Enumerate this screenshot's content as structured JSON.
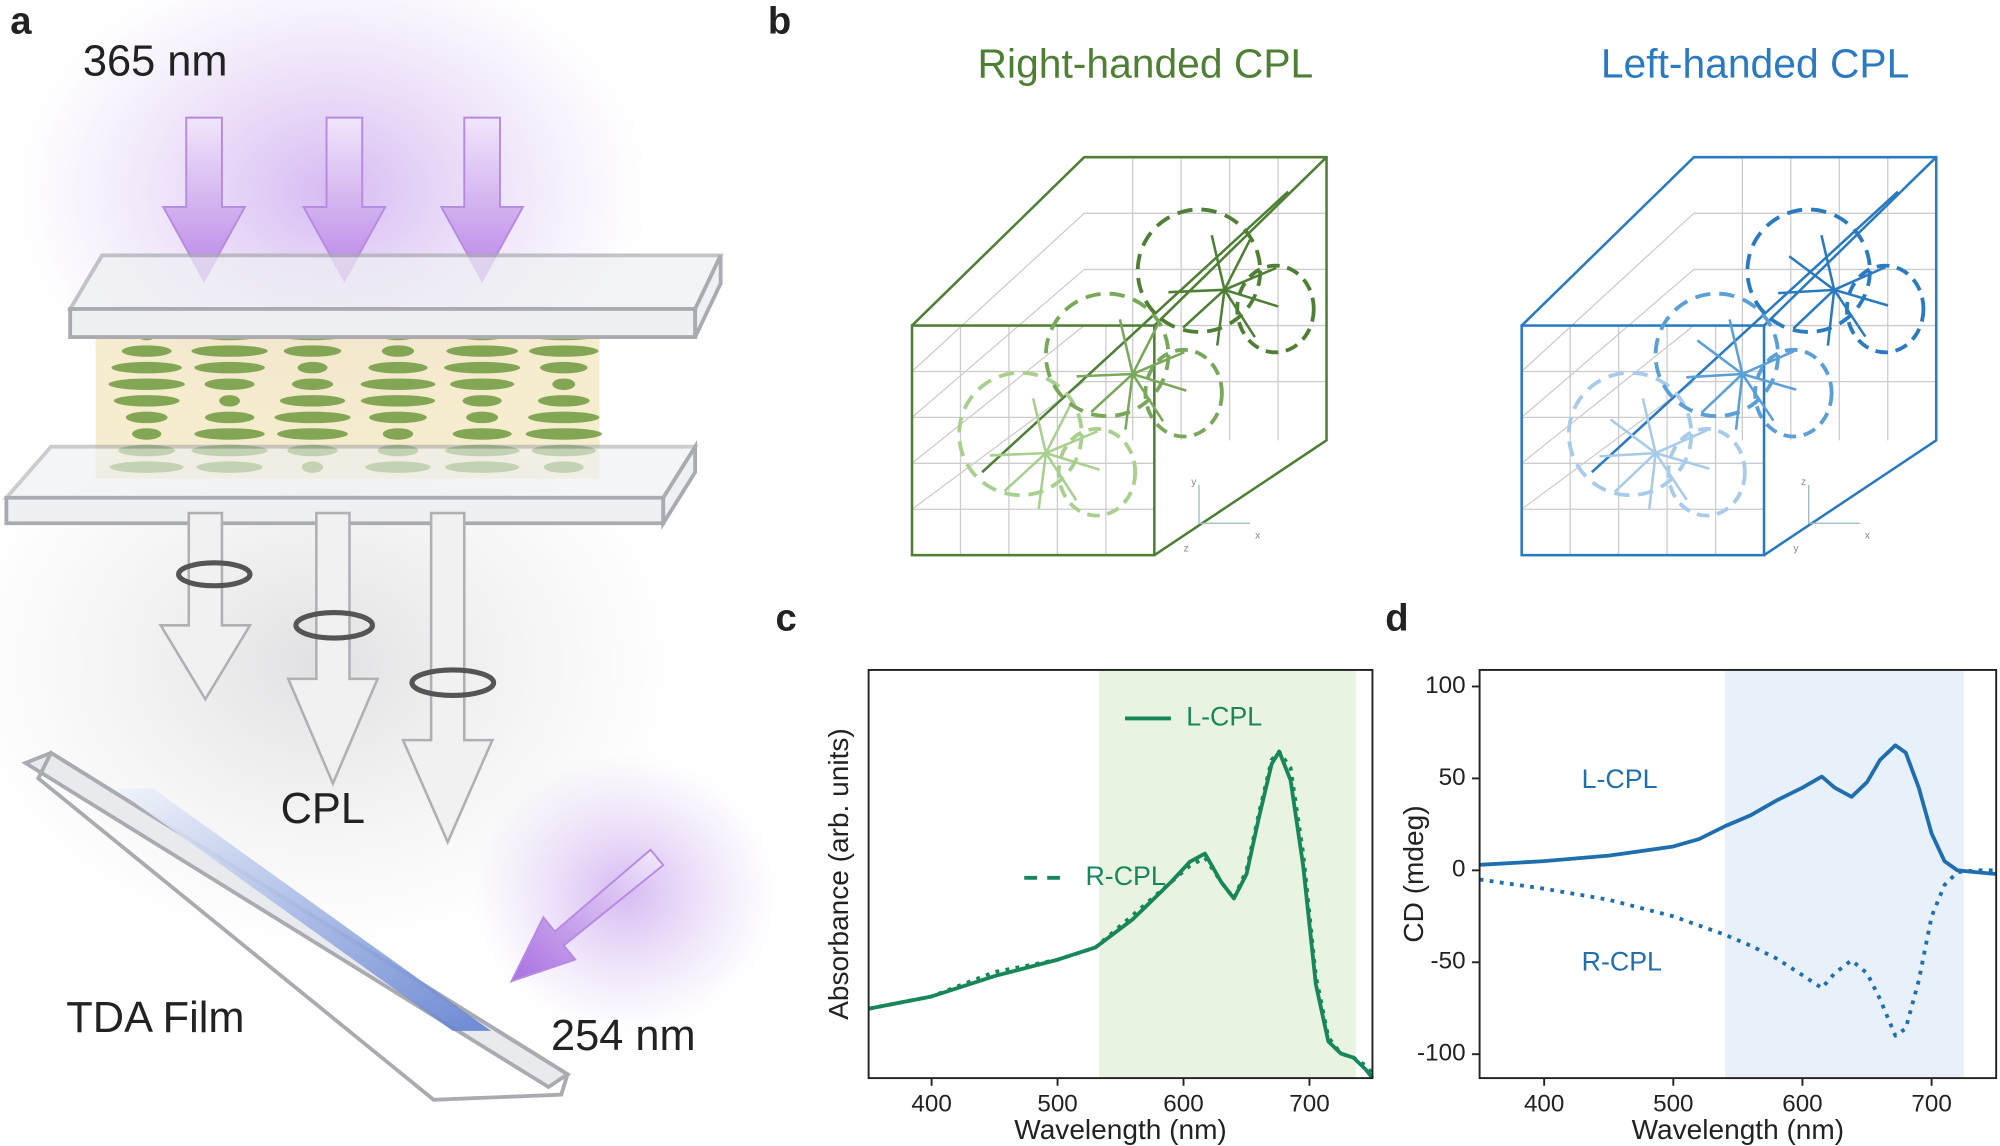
{
  "panel_labels": [
    "a",
    "b",
    "c",
    "d"
  ],
  "panel_a": {
    "top_wavelength": "365 nm",
    "beam_label": "CPL",
    "film_label": "TDA Film",
    "side_wavelength": "254 nm"
  },
  "panel_b": {
    "titles": [
      "Right-handed CPL",
      "Left-handed CPL"
    ],
    "axis_letters": [
      "x",
      "y",
      "z"
    ],
    "colors": [
      "#4f7f35",
      "#2a7ac0"
    ]
  },
  "chart_data": [
    {
      "type": "line",
      "xlabel": "Wavelength (nm)",
      "ylabel": "Absorbance (arb. units)",
      "x": [
        350,
        400,
        450,
        500,
        530,
        560,
        590,
        605,
        617,
        630,
        640,
        650,
        660,
        670,
        676,
        685,
        695,
        705,
        715,
        725,
        735,
        745,
        750
      ],
      "series": [
        {
          "name": "L-CPL",
          "color": "#17875a",
          "line_style": "solid",
          "values": [
            0.17,
            0.2,
            0.25,
            0.29,
            0.32,
            0.39,
            0.48,
            0.53,
            0.55,
            0.48,
            0.44,
            0.5,
            0.64,
            0.77,
            0.8,
            0.73,
            0.52,
            0.23,
            0.09,
            0.06,
            0.05,
            0.02,
            0
          ]
        },
        {
          "name": "R-CPL",
          "color": "#17875a",
          "line_style": "dotted",
          "values": [
            0.17,
            0.2,
            0.26,
            0.29,
            0.32,
            0.4,
            0.48,
            0.52,
            0.54,
            0.48,
            0.44,
            0.51,
            0.65,
            0.78,
            0.8,
            0.76,
            0.55,
            0.25,
            0.1,
            0.06,
            0.05,
            0.03,
            0.01
          ]
        }
      ],
      "xlim": [
        350,
        750
      ],
      "xticks": [
        400,
        500,
        600,
        700
      ],
      "ylim": [
        0,
        1
      ],
      "highlight": [
        533,
        737
      ],
      "highlight_color": "#e9f3e2",
      "legend": true
    },
    {
      "type": "line",
      "xlabel": "Wavelength (nm)",
      "ylabel": "CD (mdeg)",
      "x": [
        350,
        400,
        450,
        500,
        520,
        540,
        560,
        580,
        600,
        615,
        625,
        638,
        650,
        660,
        672,
        680,
        690,
        700,
        710,
        720,
        735,
        750
      ],
      "series": [
        {
          "name": "L-CPL",
          "color": "#1f6fae",
          "line_style": "solid",
          "values": [
            3,
            5,
            8,
            13,
            17,
            24,
            30,
            38,
            45,
            51,
            45,
            40,
            48,
            60,
            68,
            64,
            45,
            20,
            5,
            0,
            -1,
            -2
          ]
        },
        {
          "name": "R-CPL",
          "color": "#1f6fae",
          "line_style": "dotted",
          "values": [
            -5,
            -10,
            -16,
            -25,
            -30,
            -35,
            -41,
            -48,
            -57,
            -64,
            -56,
            -49,
            -56,
            -70,
            -90,
            -86,
            -60,
            -25,
            -8,
            -1,
            0,
            0
          ]
        }
      ],
      "xlim": [
        350,
        750
      ],
      "xticks": [
        400,
        500,
        600,
        700
      ],
      "ylim": [
        -113,
        109
      ],
      "yticks": [
        -100,
        -50,
        0,
        50,
        100
      ],
      "highlight": [
        540,
        725
      ],
      "highlight_color": "#e8f0f9",
      "legend": false
    }
  ]
}
